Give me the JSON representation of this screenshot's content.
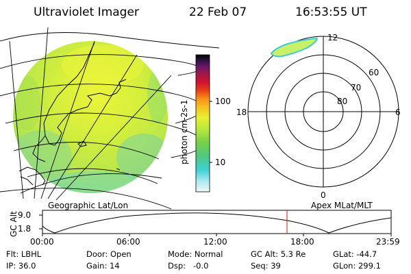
{
  "header": {
    "title": "Ultraviolet Imager",
    "date": "22 Feb 07",
    "time": "16:53:55 UT"
  },
  "colorbar": {
    "unit": "photon cm-2s-1",
    "ticks": [
      "100",
      "10"
    ],
    "colors": [
      "#000000",
      "#3a0a3a",
      "#6a1a6a",
      "#a01a60",
      "#d01030",
      "#e82020",
      "#f06020",
      "#f8a018",
      "#f8d020",
      "#d8f028",
      "#a0e040",
      "#60d060",
      "#40c8a8",
      "#40d0e0",
      "#a0e8f0",
      "#e0f4f8"
    ]
  },
  "left_panel": {
    "label": "Geographic Lat/Lon"
  },
  "right_panel": {
    "label": "Apex MLat/MLT",
    "mlt": {
      "top": "12",
      "bottom": "0",
      "left": "18",
      "right": "6"
    },
    "mlat": [
      "60",
      "70",
      "80"
    ]
  },
  "altitude_plot": {
    "ylabel": "GC Alt",
    "yticks": [
      "9.0",
      "1.8"
    ],
    "xticks": [
      "00:00",
      "06:00",
      "12:00",
      "18:00",
      "23:59"
    ],
    "marker_time": "16:53:55",
    "marker_color": "#cc2200"
  },
  "footer": {
    "flt": "Flt: LBHL",
    "door": "Door: Open",
    "mode": "Mode: Normal",
    "gcalt": "GC Alt: 5.3 Re",
    "glat": "GLat: -44.7",
    "ip": "IP: 36.0",
    "gain": "Gain: 14",
    "dsp": "Dsp:   -0.0",
    "seq": "Seq: 39",
    "glon": "GLon: 299.1"
  }
}
